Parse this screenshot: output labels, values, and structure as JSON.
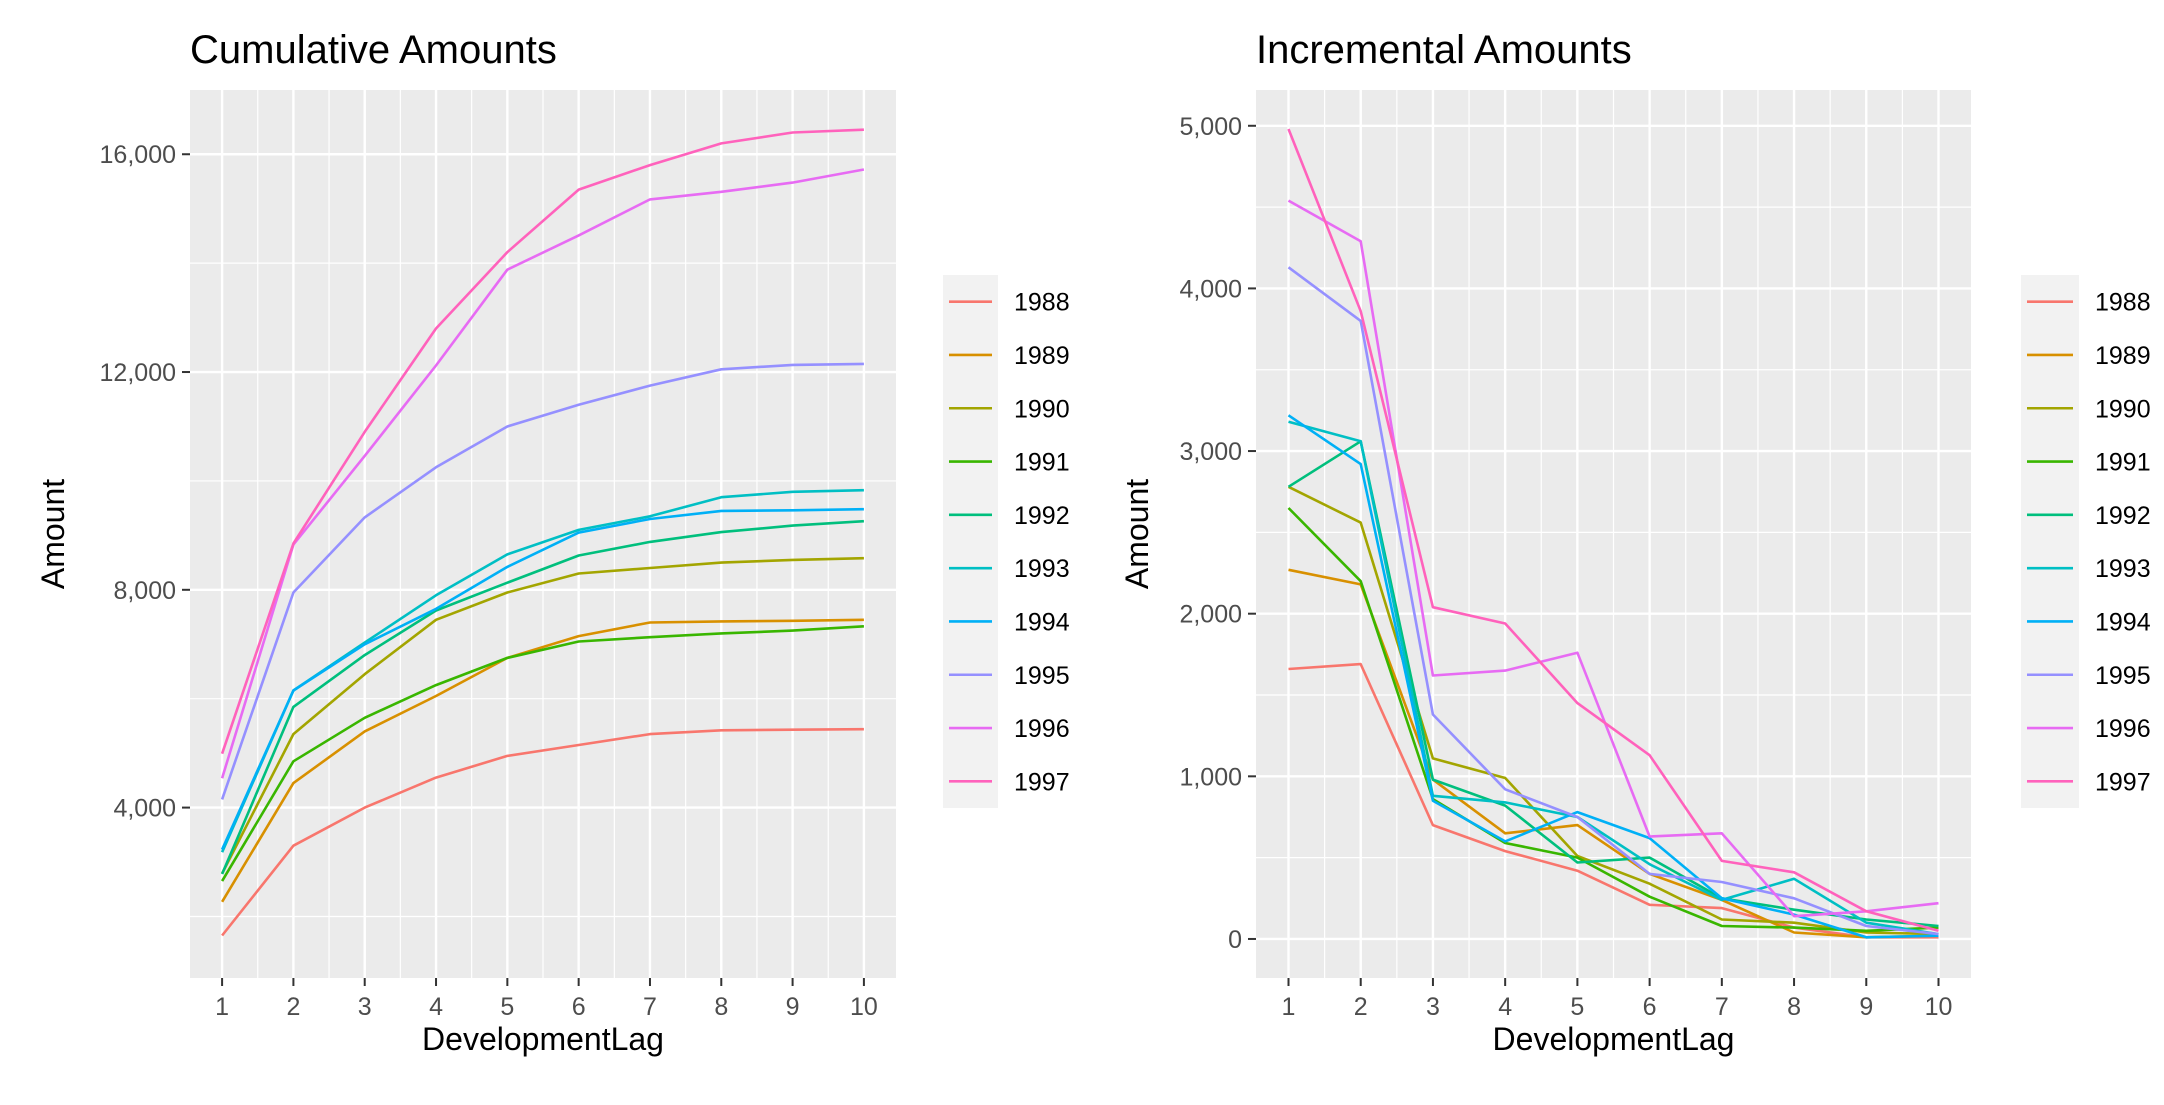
{
  "chart_data": [
    {
      "type": "line",
      "title": "Cumulative Amounts",
      "xlabel": "DevelopmentLag",
      "ylabel": "Amount",
      "x": [
        1,
        2,
        3,
        4,
        5,
        6,
        7,
        8,
        9,
        10
      ],
      "xticks": [
        "1",
        "2",
        "3",
        "4",
        "5",
        "6",
        "7",
        "8",
        "9",
        "10"
      ],
      "yticks": [
        4000,
        8000,
        12000,
        16000
      ],
      "ytick_labels": [
        "4,000",
        "8,000",
        "12,000",
        "16,000"
      ],
      "ylim": [
        870,
        17180
      ],
      "grid": true,
      "legend_position": "right",
      "series": [
        {
          "name": "1988",
          "color": "#F8766D",
          "values": [
            1650,
            3300,
            4000,
            4550,
            4950,
            5150,
            5350,
            5420,
            5430,
            5440
          ]
        },
        {
          "name": "1989",
          "color": "#D89000",
          "values": [
            2270,
            4450,
            5400,
            6050,
            6750,
            7150,
            7400,
            7420,
            7430,
            7450
          ]
        },
        {
          "name": "1990",
          "color": "#A3A500",
          "values": [
            2790,
            5350,
            6450,
            7450,
            7950,
            8300,
            8400,
            8500,
            8550,
            8580
          ]
        },
        {
          "name": "1991",
          "color": "#39B600",
          "values": [
            2650,
            4850,
            5650,
            6250,
            6750,
            7050,
            7130,
            7200,
            7250,
            7330
          ]
        },
        {
          "name": "1992",
          "color": "#00BF7D",
          "values": [
            2780,
            5850,
            6800,
            7620,
            8130,
            8630,
            8880,
            9060,
            9180,
            9260
          ]
        },
        {
          "name": "1993",
          "color": "#00BFC4",
          "values": [
            3180,
            6150,
            7030,
            7900,
            8650,
            9100,
            9350,
            9700,
            9800,
            9830
          ]
        },
        {
          "name": "1994",
          "color": "#00B0F6",
          "values": [
            3230,
            6150,
            7000,
            7650,
            8420,
            9050,
            9300,
            9450,
            9460,
            9480
          ]
        },
        {
          "name": "1995",
          "color": "#9590FF",
          "values": [
            4150,
            7950,
            9330,
            10250,
            11000,
            11400,
            11750,
            12050,
            12130,
            12150
          ]
        },
        {
          "name": "1996",
          "color": "#E76BF3",
          "values": [
            4540,
            8830,
            10460,
            12120,
            13880,
            14510,
            15170,
            15310,
            15480,
            15720
          ]
        },
        {
          "name": "1997",
          "color": "#FF62BC",
          "values": [
            4990,
            8850,
            10900,
            12800,
            14200,
            15350,
            15800,
            16200,
            16400,
            16450
          ]
        }
      ]
    },
    {
      "type": "line",
      "title": "Incremental Amounts",
      "xlabel": "DevelopmentLag",
      "ylabel": "Amount",
      "x": [
        1,
        2,
        3,
        4,
        5,
        6,
        7,
        8,
        9,
        10
      ],
      "xticks": [
        "1",
        "2",
        "3",
        "4",
        "5",
        "6",
        "7",
        "8",
        "9",
        "10"
      ],
      "yticks": [
        0,
        1000,
        2000,
        3000,
        4000,
        5000
      ],
      "ytick_labels": [
        "0",
        "1,000",
        "2,000",
        "3,000",
        "4,000",
        "5,000"
      ],
      "ylim": [
        -240,
        5220
      ],
      "grid": true,
      "legend_position": "right",
      "series": [
        {
          "name": "1988",
          "color": "#F8766D",
          "values": [
            1660,
            1690,
            700,
            540,
            420,
            210,
            190,
            70,
            10,
            10
          ]
        },
        {
          "name": "1989",
          "color": "#D89000",
          "values": [
            2270,
            2180,
            980,
            650,
            700,
            400,
            240,
            40,
            10,
            20
          ]
        },
        {
          "name": "1990",
          "color": "#A3A500",
          "values": [
            2780,
            2560,
            1110,
            990,
            510,
            340,
            120,
            100,
            40,
            30
          ]
        },
        {
          "name": "1991",
          "color": "#39B600",
          "values": [
            2650,
            2200,
            860,
            590,
            500,
            260,
            80,
            70,
            50,
            70
          ]
        },
        {
          "name": "1992",
          "color": "#00BF7D",
          "values": [
            2780,
            3060,
            980,
            820,
            470,
            500,
            250,
            180,
            120,
            80
          ]
        },
        {
          "name": "1993",
          "color": "#00BFC4",
          "values": [
            3180,
            3060,
            880,
            840,
            750,
            460,
            240,
            370,
            100,
            30
          ]
        },
        {
          "name": "1994",
          "color": "#00B0F6",
          "values": [
            3220,
            2920,
            850,
            600,
            780,
            620,
            250,
            150,
            10,
            20
          ]
        },
        {
          "name": "1995",
          "color": "#9590FF",
          "values": [
            4130,
            3800,
            1380,
            920,
            750,
            400,
            350,
            250,
            80,
            30
          ]
        },
        {
          "name": "1996",
          "color": "#E76BF3",
          "values": [
            4540,
            4290,
            1620,
            1650,
            1760,
            630,
            650,
            140,
            170,
            220
          ]
        },
        {
          "name": "1997",
          "color": "#FF62BC",
          "values": [
            4980,
            3860,
            2040,
            1940,
            1450,
            1130,
            480,
            410,
            170,
            50
          ]
        }
      ]
    }
  ]
}
